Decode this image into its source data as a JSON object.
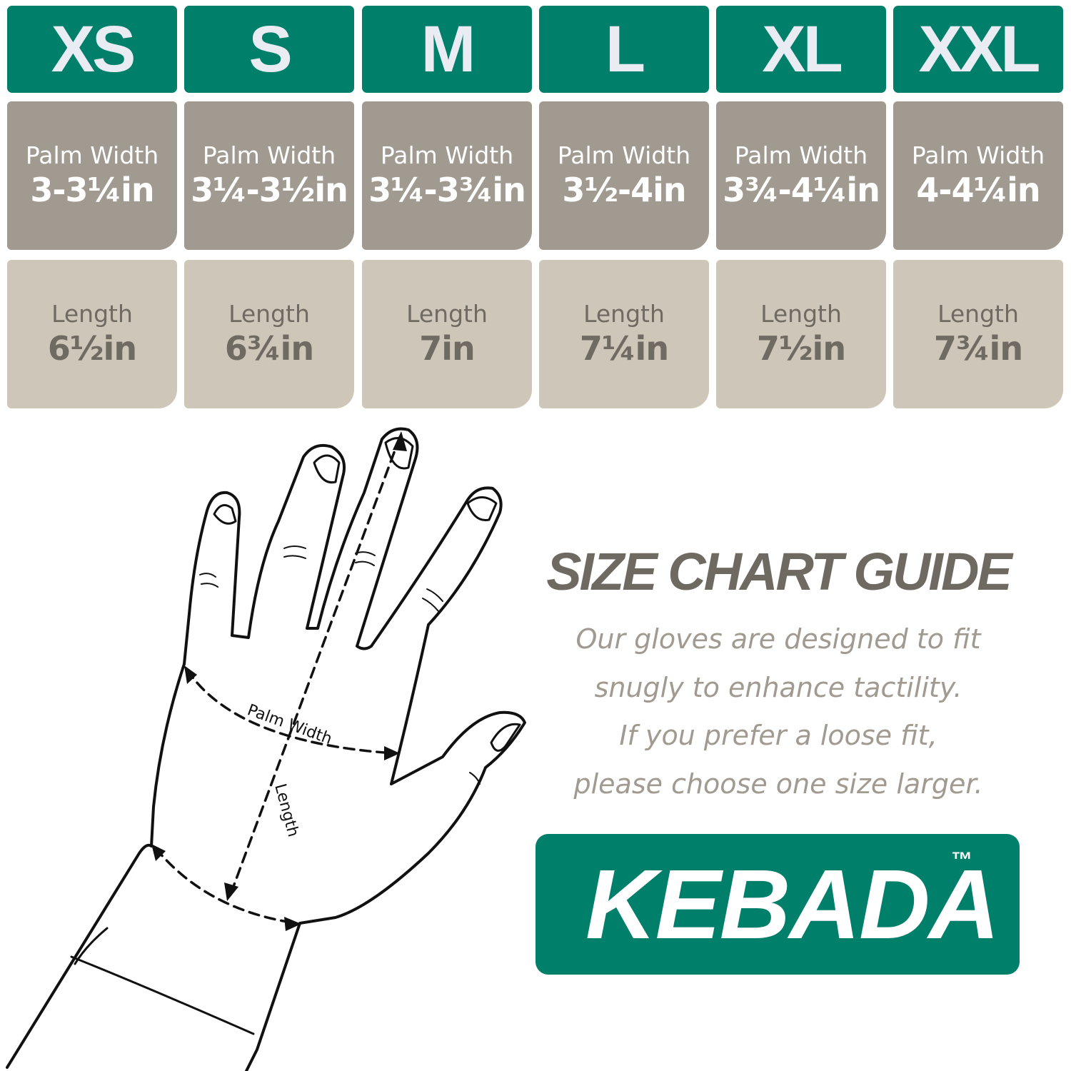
{
  "sizes": [
    {
      "size": "XS",
      "palm_label": "Palm Width",
      "palm": "3-3¼in",
      "length_label": "Length",
      "length": "6½in"
    },
    {
      "size": "S",
      "palm_label": "Palm Width",
      "palm": "3¼-3½in",
      "length_label": "Length",
      "length": "6¾in"
    },
    {
      "size": "M",
      "palm_label": "Palm Width",
      "palm": "3¼-3¾in",
      "length_label": "Length",
      "length": "7in"
    },
    {
      "size": "L",
      "palm_label": "Palm Width",
      "palm": "3½-4in",
      "length_label": "Length",
      "length": "7¼in"
    },
    {
      "size": "XL",
      "palm_label": "Palm Width",
      "palm": "3¾-4¼in",
      "length_label": "Length",
      "length": "7½in"
    },
    {
      "size": "XXL",
      "palm_label": "Palm Width",
      "palm": "4-4¼in",
      "length_label": "Length",
      "length": "7¾in"
    }
  ],
  "diagram": {
    "palm_width_label": "Palm Width",
    "length_label": "Length"
  },
  "guide": {
    "title": "SIZE CHART GUIDE",
    "lines": [
      "Our gloves are designed to fit",
      "snugly to enhance tactility.",
      "If you prefer a loose fit,",
      "please choose one size larger."
    ]
  },
  "brand": {
    "name": "KEBADA",
    "tm": "™"
  },
  "colors": {
    "green": "#007f6a",
    "palm_bg": "#a09a90",
    "length_bg": "#cec6b9",
    "text_gray": "#6e6a62"
  }
}
